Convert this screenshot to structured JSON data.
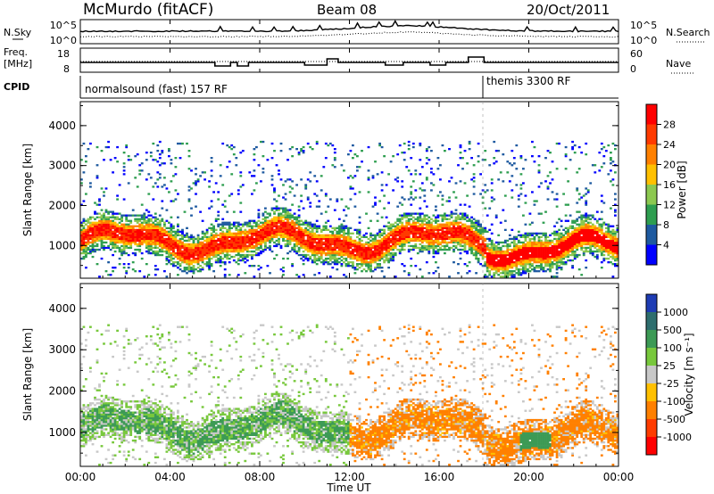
{
  "header": {
    "station": "McMurdo (fitACF)",
    "beam": "Beam 08",
    "date": "20/Oct/2011"
  },
  "top_panel": {
    "left_label": "N.Sky",
    "right_label": "N.Search",
    "left_ticks": [
      "10^5",
      "10^0"
    ],
    "right_ticks": [
      "10^5",
      "10^0"
    ]
  },
  "freq_panel": {
    "left_label_1": "Freq.",
    "left_label_2": "[MHz]",
    "right_label": "Nave",
    "left_ticks": [
      "18",
      "8"
    ],
    "right_ticks": [
      "60",
      "0"
    ]
  },
  "cpid_panel": {
    "label": "CPID",
    "segments": [
      {
        "text": "normalsound (fast) 157 RF",
        "start_hour": 0
      },
      {
        "text": "themis 3300 RF",
        "start_hour": 18
      }
    ]
  },
  "chart_data": [
    {
      "type": "heatmap",
      "variable": "Power",
      "ylabel": "Slant Range [km]",
      "xlabel": "Time UT",
      "x_ticks": [
        "00:00",
        "04:00",
        "08:00",
        "12:00",
        "16:00",
        "20:00",
        "00:00"
      ],
      "x_range_hours": [
        0,
        24
      ],
      "y_ticks": [
        1000,
        2000,
        3000,
        4000
      ],
      "y_range": [
        180,
        4600
      ],
      "colorbar": {
        "label": "Power [dB]",
        "ticks": [
          "28",
          "24",
          "20",
          "16",
          "12",
          "8",
          "4"
        ],
        "colors": [
          "#ff0000",
          "#ff3a00",
          "#ff8000",
          "#ffc000",
          "#8cc850",
          "#2e9e50",
          "#1e5aa0",
          "#0000ff"
        ]
      }
    },
    {
      "type": "heatmap",
      "variable": "Velocity",
      "ylabel": "Slant Range [km]",
      "xlabel": "Time UT",
      "x_ticks": [
        "00:00",
        "04:00",
        "08:00",
        "12:00",
        "16:00",
        "20:00",
        "00:00"
      ],
      "x_range_hours": [
        0,
        24
      ],
      "y_ticks": [
        1000,
        2000,
        3000,
        4000
      ],
      "y_range": [
        180,
        4600
      ],
      "colorbar": {
        "label": "Velocity [m s⁻¹]",
        "ticks": [
          "1000",
          "500",
          "100",
          "25",
          "-25",
          "-100",
          "-500",
          "-1000"
        ],
        "colors": [
          "#1e3cb4",
          "#2e6e6e",
          "#3c9a55",
          "#78c83c",
          "#c8c8c8",
          "#ffc000",
          "#ff8000",
          "#ff3c00",
          "#ff0000"
        ]
      }
    }
  ]
}
